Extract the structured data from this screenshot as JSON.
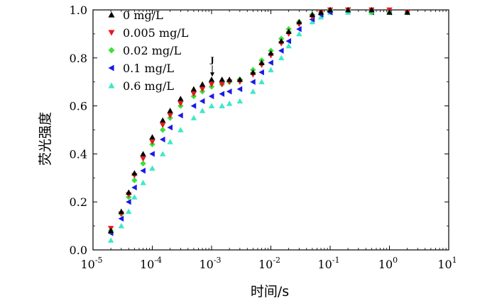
{
  "chart_data": {
    "type": "scatter",
    "title": "",
    "xlabel": "时间/s",
    "ylabel": "荧光强度",
    "x_scale": "log",
    "xlim": [
      1e-05,
      10
    ],
    "ylim": [
      0,
      1
    ],
    "x_ticks": [
      {
        "base": "10",
        "exp": "-5"
      },
      {
        "base": "10",
        "exp": "-4"
      },
      {
        "base": "10",
        "exp": "-3"
      },
      {
        "base": "10",
        "exp": "-2"
      },
      {
        "base": "10",
        "exp": "-1"
      },
      {
        "base": "10",
        "exp": "0"
      },
      {
        "base": "10",
        "exp": "1"
      }
    ],
    "y_ticks": [
      "0.0",
      "0.2",
      "0.4",
      "0.6",
      "0.8",
      "1.0"
    ],
    "grid": false,
    "legend_position": "top-left",
    "annotation": {
      "label": "J",
      "x": 0.001,
      "y": 0.71
    },
    "series": [
      {
        "name": "0 mg/L",
        "marker": "triangle-up",
        "color": "#000000",
        "points": [
          [
            2e-05,
            0.08
          ],
          [
            3e-05,
            0.16
          ],
          [
            4e-05,
            0.24
          ],
          [
            5e-05,
            0.32
          ],
          [
            7e-05,
            0.4
          ],
          [
            0.0001,
            0.47
          ],
          [
            0.00015,
            0.54
          ],
          [
            0.0002,
            0.58
          ],
          [
            0.0003,
            0.63
          ],
          [
            0.0005,
            0.67
          ],
          [
            0.0007,
            0.69
          ],
          [
            0.001,
            0.71
          ],
          [
            0.0015,
            0.71
          ],
          [
            0.002,
            0.71
          ],
          [
            0.003,
            0.71
          ],
          [
            0.005,
            0.74
          ],
          [
            0.007,
            0.78
          ],
          [
            0.01,
            0.82
          ],
          [
            0.015,
            0.87
          ],
          [
            0.02,
            0.91
          ],
          [
            0.03,
            0.95
          ],
          [
            0.05,
            0.98
          ],
          [
            0.07,
            0.99
          ],
          [
            0.1,
            1.0
          ],
          [
            0.2,
            1.0
          ],
          [
            0.5,
            1.0
          ],
          [
            1,
            0.99
          ],
          [
            2,
            0.99
          ]
        ]
      },
      {
        "name": "0.005 mg/L",
        "marker": "triangle-down",
        "color": "#e8191e",
        "points": [
          [
            2e-05,
            0.09
          ],
          [
            3e-05,
            0.15
          ],
          [
            4e-05,
            0.23
          ],
          [
            5e-05,
            0.31
          ],
          [
            7e-05,
            0.38
          ],
          [
            0.0001,
            0.45
          ],
          [
            0.00015,
            0.52
          ],
          [
            0.0002,
            0.56
          ],
          [
            0.0003,
            0.61
          ],
          [
            0.0005,
            0.65
          ],
          [
            0.0007,
            0.67
          ],
          [
            0.001,
            0.69
          ],
          [
            0.0015,
            0.69
          ],
          [
            0.002,
            0.7
          ],
          [
            0.003,
            0.7
          ],
          [
            0.005,
            0.73
          ],
          [
            0.007,
            0.77
          ],
          [
            0.01,
            0.81
          ],
          [
            0.015,
            0.86
          ],
          [
            0.02,
            0.9
          ],
          [
            0.03,
            0.94
          ],
          [
            0.05,
            0.97
          ],
          [
            0.07,
            0.99
          ],
          [
            0.1,
            1.0
          ],
          [
            0.2,
            1.0
          ],
          [
            0.5,
            1.0
          ],
          [
            1,
            1.0
          ],
          [
            2,
            0.99
          ]
        ]
      },
      {
        "name": "0.02 mg/L",
        "marker": "diamond",
        "color": "#3ce03c",
        "points": [
          [
            2e-05,
            0.08
          ],
          [
            3e-05,
            0.15
          ],
          [
            4e-05,
            0.22
          ],
          [
            5e-05,
            0.29
          ],
          [
            7e-05,
            0.36
          ],
          [
            0.0001,
            0.44
          ],
          [
            0.00015,
            0.5
          ],
          [
            0.0002,
            0.55
          ],
          [
            0.0003,
            0.6
          ],
          [
            0.0005,
            0.64
          ],
          [
            0.0007,
            0.66
          ],
          [
            0.001,
            0.68
          ],
          [
            0.0015,
            0.69
          ],
          [
            0.002,
            0.7
          ],
          [
            0.003,
            0.71
          ],
          [
            0.005,
            0.75
          ],
          [
            0.007,
            0.79
          ],
          [
            0.01,
            0.83
          ],
          [
            0.015,
            0.88
          ],
          [
            0.02,
            0.92
          ],
          [
            0.03,
            0.95
          ],
          [
            0.05,
            0.98
          ],
          [
            0.07,
            0.99
          ],
          [
            0.1,
            1.0
          ],
          [
            0.2,
            1.0
          ],
          [
            0.5,
            0.99
          ],
          [
            1,
            0.99
          ],
          [
            2,
            0.99
          ]
        ]
      },
      {
        "name": "0.1 mg/L",
        "marker": "triangle-left",
        "color": "#1a1ae6",
        "points": [
          [
            2e-05,
            0.07
          ],
          [
            3e-05,
            0.13
          ],
          [
            4e-05,
            0.2
          ],
          [
            5e-05,
            0.26
          ],
          [
            7e-05,
            0.33
          ],
          [
            0.0001,
            0.4
          ],
          [
            0.00015,
            0.46
          ],
          [
            0.0002,
            0.51
          ],
          [
            0.0003,
            0.56
          ],
          [
            0.0005,
            0.6
          ],
          [
            0.0007,
            0.62
          ],
          [
            0.001,
            0.64
          ],
          [
            0.0015,
            0.65
          ],
          [
            0.002,
            0.66
          ],
          [
            0.003,
            0.67
          ],
          [
            0.005,
            0.7
          ],
          [
            0.007,
            0.74
          ],
          [
            0.01,
            0.78
          ],
          [
            0.015,
            0.83
          ],
          [
            0.02,
            0.87
          ],
          [
            0.03,
            0.92
          ],
          [
            0.05,
            0.96
          ],
          [
            0.07,
            0.98
          ],
          [
            0.1,
            0.99
          ],
          [
            0.2,
            1.0
          ],
          [
            0.5,
            0.99
          ],
          [
            1,
            0.99
          ],
          [
            2,
            0.99
          ]
        ]
      },
      {
        "name": "0.6 mg/L",
        "marker": "triangle-up",
        "color": "#3ee8c8",
        "points": [
          [
            2e-05,
            0.04
          ],
          [
            3e-05,
            0.1
          ],
          [
            4e-05,
            0.16
          ],
          [
            5e-05,
            0.22
          ],
          [
            7e-05,
            0.28
          ],
          [
            0.0001,
            0.34
          ],
          [
            0.00015,
            0.4
          ],
          [
            0.0002,
            0.45
          ],
          [
            0.0003,
            0.5
          ],
          [
            0.0005,
            0.55
          ],
          [
            0.0007,
            0.58
          ],
          [
            0.001,
            0.6
          ],
          [
            0.0015,
            0.6
          ],
          [
            0.002,
            0.61
          ],
          [
            0.003,
            0.62
          ],
          [
            0.005,
            0.66
          ],
          [
            0.007,
            0.7
          ],
          [
            0.01,
            0.75
          ],
          [
            0.015,
            0.8
          ],
          [
            0.02,
            0.85
          ],
          [
            0.03,
            0.9
          ],
          [
            0.05,
            0.95
          ],
          [
            0.07,
            0.97
          ],
          [
            0.1,
            0.99
          ],
          [
            0.2,
            0.99
          ],
          [
            0.5,
            0.99
          ],
          [
            1,
            0.99
          ],
          [
            2,
            0.99
          ]
        ]
      }
    ]
  }
}
